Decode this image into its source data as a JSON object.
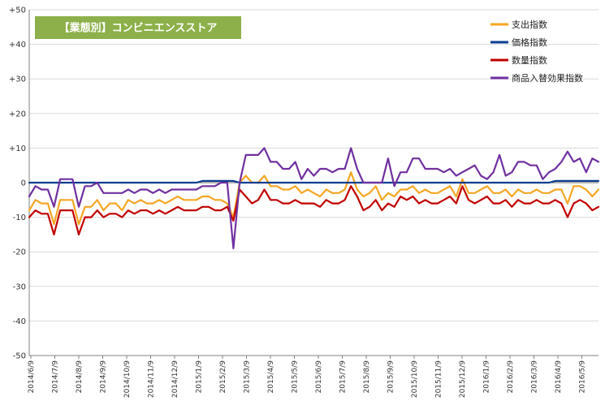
{
  "chart_data": {
    "type": "line",
    "title": "【業態別】コンビニエンスストア",
    "xlabel": "",
    "ylabel": "",
    "ylim": [
      -50,
      50
    ],
    "y_ticks": [
      "+50",
      "+40",
      "+30",
      "+20",
      "+10",
      "0",
      "-10",
      "-20",
      "-30",
      "-40",
      "-50"
    ],
    "x_tick_labels": [
      "2014/6/9",
      "2014/7/9",
      "2014/8/9",
      "2014/9/9",
      "2014/10/9",
      "2014/11/9",
      "2014/12/9",
      "2015/1/9",
      "2015/2/9",
      "2015/3/9",
      "2015/4/9",
      "2015/5/9",
      "2015/6/9",
      "2015/7/9",
      "2015/8/9",
      "2015/9/9",
      "2015/10/9",
      "2015/11/9",
      "2015/12/9",
      "2016/1/9",
      "2016/2/9",
      "2016/3/9",
      "2016/4/9",
      "2016/5/9"
    ],
    "grid": "horizontal",
    "legend_position": "top-right",
    "colors": {
      "title_bg": "#8db04a",
      "grid": "#d9d9d9",
      "zero_line": "#808080",
      "axis": "#808080"
    },
    "series": [
      {
        "name": "支出指数",
        "color": "#f5a623",
        "values": [
          -8,
          -5,
          -6,
          -6,
          -12,
          -5,
          -5,
          -5,
          -12,
          -7,
          -7,
          -5,
          -8,
          -6,
          -6,
          -8,
          -5,
          -6,
          -5,
          -6,
          -6,
          -5,
          -6,
          -5,
          -4,
          -5,
          -5,
          -5,
          -4,
          -4,
          -5,
          -5,
          -6,
          -10,
          0,
          2,
          0,
          0,
          2,
          -1,
          -1,
          -2,
          -2,
          -1,
          -3,
          -2,
          -3,
          -4,
          -2,
          -3,
          -3,
          -2,
          3,
          -2,
          -4,
          -3,
          -1,
          -5,
          -3,
          -4,
          -2,
          -2,
          -1,
          -3,
          -2,
          -3,
          -3,
          -2,
          -1,
          -4,
          1,
          -3,
          -3,
          -2,
          -1,
          -3,
          -3,
          -2,
          -4,
          -2,
          -3,
          -3,
          -2,
          -3,
          -3,
          -2,
          -2,
          -6,
          -1,
          -1,
          -2,
          -4,
          -2
        ]
      },
      {
        "name": "価格指数",
        "color": "#0b3d91",
        "values": [
          0,
          0,
          0,
          0,
          0,
          0,
          0,
          0,
          0,
          0,
          0,
          0,
          0,
          0,
          0,
          0,
          0,
          0,
          0,
          0,
          0,
          0,
          0,
          0,
          0,
          0,
          0,
          0,
          0.5,
          0.5,
          0.5,
          0.5,
          0.5,
          0.5,
          0,
          0,
          0,
          0,
          0,
          0,
          0,
          0,
          0,
          0,
          0,
          0,
          0,
          0,
          0,
          0,
          0,
          0,
          0,
          0,
          0,
          0,
          0,
          0,
          0,
          0,
          0,
          0,
          0,
          0,
          0,
          0,
          0,
          0,
          0,
          0,
          0,
          0,
          0,
          0,
          0,
          0,
          0,
          0,
          0,
          0,
          0,
          0,
          0,
          0,
          0,
          0.5,
          0.5,
          0.5,
          0.5,
          0.5,
          0.5,
          0.5,
          0.5
        ]
      },
      {
        "name": "数量指数",
        "color": "#c00000",
        "values": [
          -10,
          -8,
          -9,
          -9,
          -15,
          -8,
          -8,
          -8,
          -15,
          -10,
          -10,
          -8,
          -10,
          -9,
          -9,
          -10,
          -8,
          -9,
          -8,
          -8,
          -9,
          -8,
          -9,
          -8,
          -7,
          -8,
          -8,
          -8,
          -7,
          -7,
          -8,
          -8,
          -7,
          -11,
          -2,
          -4,
          -6,
          -5,
          -2,
          -5,
          -5,
          -6,
          -6,
          -5,
          -6,
          -6,
          -6,
          -7,
          -5,
          -6,
          -6,
          -5,
          -1,
          -4,
          -8,
          -7,
          -5,
          -8,
          -6,
          -7,
          -4,
          -5,
          -4,
          -6,
          -5,
          -6,
          -6,
          -5,
          -4,
          -6,
          -1,
          -5,
          -6,
          -5,
          -4,
          -6,
          -6,
          -5,
          -7,
          -5,
          -6,
          -6,
          -5,
          -6,
          -6,
          -5,
          -6,
          -10,
          -6,
          -5,
          -6,
          -8,
          -7
        ]
      },
      {
        "name": "商品入替効果指数",
        "color": "#7030a0",
        "values": [
          -4,
          -1,
          -2,
          -2,
          -7,
          1,
          1,
          1,
          -7,
          -1,
          -1,
          0,
          -3,
          -3,
          -3,
          -3,
          -2,
          -3,
          -2,
          -2,
          -3,
          -2,
          -3,
          -2,
          -2,
          -2,
          -2,
          -2,
          -1,
          -1,
          -1,
          0,
          0,
          -19,
          0,
          8,
          8,
          8,
          10,
          6,
          6,
          4,
          4,
          6,
          1,
          4,
          2,
          4,
          4,
          3,
          4,
          4,
          10,
          4,
          0,
          0,
          0,
          0,
          7,
          -1,
          3,
          3,
          7,
          7,
          4,
          4,
          4,
          3,
          4,
          2,
          3,
          4,
          5,
          2,
          1,
          3,
          8,
          2,
          3,
          6,
          6,
          5,
          5,
          1,
          3,
          4,
          6,
          9,
          6,
          7,
          3,
          7,
          6
        ]
      }
    ]
  }
}
